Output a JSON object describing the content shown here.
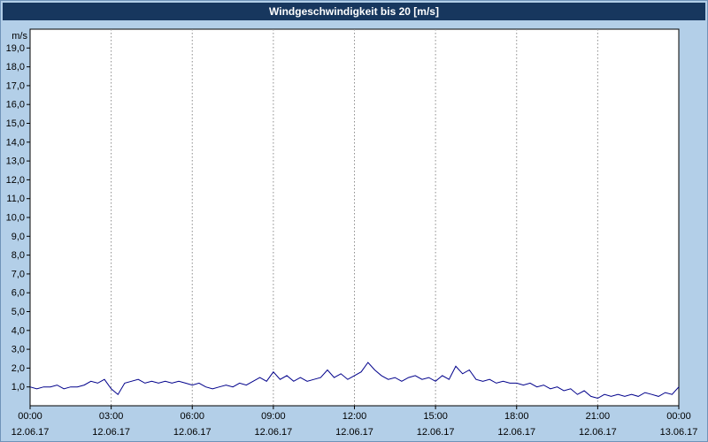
{
  "title_bar": {
    "title": "Windgeschwindigkeit bis 20 [m/s]"
  },
  "colors": {
    "page_bg": "#B3CFE8",
    "titlebar_bg": "#17375E",
    "titlebar_fg": "#FFFFFF",
    "plot_bg": "#FFFFFF",
    "plot_border": "#000000",
    "grid": "#8C8C8C",
    "line": "#00008B",
    "tick_text": "#000000"
  },
  "chart_data": {
    "type": "line",
    "title": "Windgeschwindigkeit bis 20 [m/s]",
    "unit_label": "m/s",
    "ylim": [
      0,
      20
    ],
    "y_ticks": [
      1,
      2,
      3,
      4,
      5,
      6,
      7,
      8,
      9,
      10,
      11,
      12,
      13,
      14,
      15,
      16,
      17,
      18,
      19
    ],
    "y_tick_labels": [
      "1,0",
      "2,0",
      "3,0",
      "4,0",
      "5,0",
      "6,0",
      "7,0",
      "8,0",
      "9,0",
      "10,0",
      "11,0",
      "12,0",
      "13,0",
      "14,0",
      "15,0",
      "16,0",
      "17,0",
      "18,0",
      "19,0"
    ],
    "x_range_hours": [
      0,
      24
    ],
    "x_tick_hours": [
      0,
      3,
      6,
      9,
      12,
      15,
      18,
      21,
      24
    ],
    "x_tick_time_labels": [
      "00:00",
      "03:00",
      "06:00",
      "09:00",
      "12:00",
      "15:00",
      "18:00",
      "21:00",
      "00:00"
    ],
    "x_tick_date_labels": [
      "12.06.17",
      "12.06.17",
      "12.06.17",
      "12.06.17",
      "12.06.17",
      "12.06.17",
      "12.06.17",
      "12.06.17",
      "13.06.17"
    ],
    "grid": "vertical-dashed",
    "legend": "none",
    "series": [
      {
        "name": "Windgeschwindigkeit [m/s]",
        "x_start_hour": 0,
        "x_step_hours": 0.25,
        "values": [
          1.0,
          0.9,
          1.0,
          1.0,
          1.1,
          0.9,
          1.0,
          1.0,
          1.1,
          1.3,
          1.2,
          1.4,
          0.9,
          0.6,
          1.2,
          1.3,
          1.4,
          1.2,
          1.3,
          1.2,
          1.3,
          1.2,
          1.3,
          1.2,
          1.1,
          1.2,
          1.0,
          0.9,
          1.0,
          1.1,
          1.0,
          1.2,
          1.1,
          1.3,
          1.5,
          1.3,
          1.8,
          1.4,
          1.6,
          1.3,
          1.5,
          1.3,
          1.4,
          1.5,
          1.9,
          1.5,
          1.7,
          1.4,
          1.6,
          1.8,
          2.3,
          1.9,
          1.6,
          1.4,
          1.5,
          1.3,
          1.5,
          1.6,
          1.4,
          1.5,
          1.3,
          1.6,
          1.4,
          2.1,
          1.7,
          1.9,
          1.4,
          1.3,
          1.4,
          1.2,
          1.3,
          1.2,
          1.2,
          1.1,
          1.2,
          1.0,
          1.1,
          0.9,
          1.0,
          0.8,
          0.9,
          0.6,
          0.8,
          0.5,
          0.4,
          0.6,
          0.5,
          0.6,
          0.5,
          0.6,
          0.5,
          0.7,
          0.6,
          0.5,
          0.7,
          0.6,
          1.0
        ]
      }
    ]
  }
}
